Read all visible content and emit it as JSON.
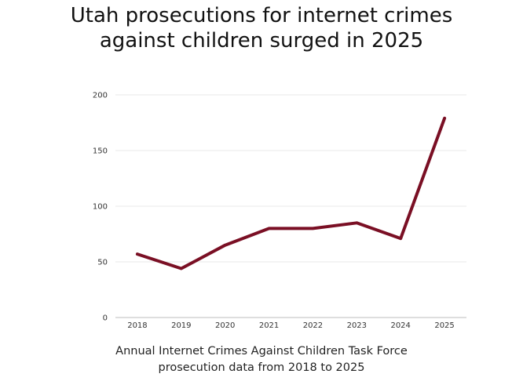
{
  "title_lines": [
    "Utah prosecutions for internet crimes",
    "against children surged in 2025"
  ],
  "caption_lines": [
    "Annual Internet Crimes Against Children Task Force",
    "prosecution data from 2018 to 2025"
  ],
  "colors": {
    "line": "#7a0f24",
    "grid": "#e8e8e8",
    "axis": "#bdbdbd"
  },
  "chart_data": {
    "type": "line",
    "x": [
      "2018",
      "2019",
      "2020",
      "2021",
      "2022",
      "2023",
      "2024",
      "2025"
    ],
    "series": [
      {
        "values": [
          57,
          44,
          65,
          80,
          80,
          85,
          71,
          179
        ]
      }
    ],
    "ylim": [
      0,
      200
    ],
    "yticks": [
      0,
      50,
      100,
      150,
      200
    ],
    "grid": true,
    "legend": "none"
  }
}
